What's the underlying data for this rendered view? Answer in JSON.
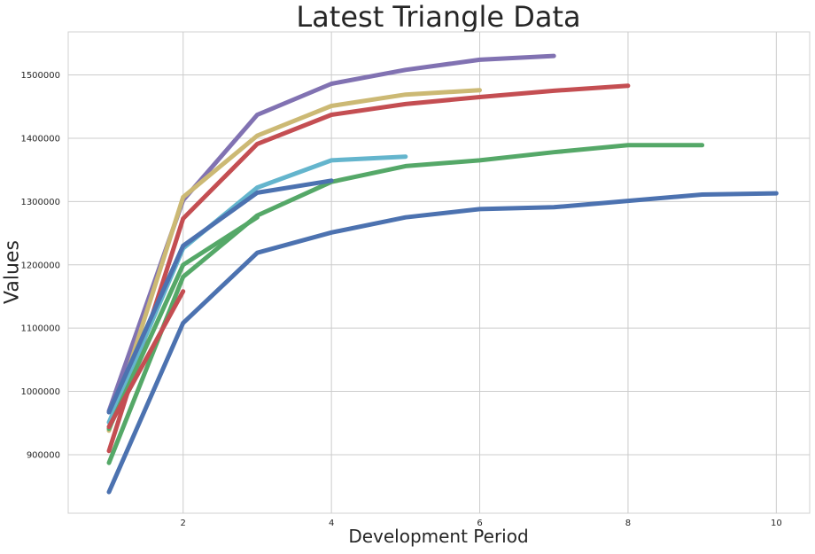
{
  "chart_data": {
    "type": "line",
    "title": "Latest Triangle Data",
    "xlabel": "Development Period",
    "ylabel": "Values",
    "xlim": [
      0.45,
      10.45
    ],
    "ylim": [
      807500,
      1568000
    ],
    "grid": true,
    "legend": "none",
    "xticks": [
      2,
      4,
      6,
      8,
      10
    ],
    "yticks": [
      900000,
      1000000,
      1100000,
      1200000,
      1300000,
      1400000,
      1500000
    ],
    "series": [
      {
        "color": "#4c72b0",
        "points": [
          [
            1,
            841000
          ],
          [
            2,
            1108000
          ],
          [
            3,
            1219000
          ],
          [
            4,
            1251000
          ],
          [
            5,
            1275000
          ],
          [
            6,
            1288000
          ],
          [
            7,
            1291000
          ],
          [
            8,
            1301000
          ],
          [
            9,
            1311000
          ],
          [
            10,
            1313000
          ]
        ]
      },
      {
        "color": "#55a868",
        "points": [
          [
            1,
            887000
          ],
          [
            2,
            1181000
          ],
          [
            3,
            1278000
          ],
          [
            4,
            1331000
          ],
          [
            5,
            1356000
          ],
          [
            6,
            1365000
          ],
          [
            7,
            1378000
          ],
          [
            8,
            1389000
          ],
          [
            9,
            1389000
          ]
        ]
      },
      {
        "color": "#c44e52",
        "points": [
          [
            1,
            906000
          ],
          [
            2,
            1273000
          ],
          [
            3,
            1391000
          ],
          [
            4,
            1437000
          ],
          [
            5,
            1454000
          ],
          [
            6,
            1465000
          ],
          [
            7,
            1475000
          ],
          [
            8,
            1483000
          ]
        ]
      },
      {
        "color": "#8172b2",
        "points": [
          [
            1,
            969000
          ],
          [
            2,
            1302000
          ],
          [
            3,
            1437000
          ],
          [
            4,
            1486000
          ],
          [
            5,
            1508000
          ],
          [
            6,
            1524000
          ],
          [
            7,
            1530000
          ]
        ]
      },
      {
        "color": "#ccb974",
        "points": [
          [
            1,
            938000
          ],
          [
            2,
            1307000
          ],
          [
            3,
            1404000
          ],
          [
            4,
            1451000
          ],
          [
            5,
            1469000
          ],
          [
            6,
            1476000
          ]
        ]
      },
      {
        "color": "#64b5cd",
        "points": [
          [
            1,
            951000
          ],
          [
            2,
            1226000
          ],
          [
            3,
            1322000
          ],
          [
            4,
            1365000
          ],
          [
            5,
            1371000
          ]
        ]
      },
      {
        "color": "#4c72b0",
        "points": [
          [
            1,
            967000
          ],
          [
            2,
            1230000
          ],
          [
            3,
            1314000
          ],
          [
            4,
            1333000
          ]
        ]
      },
      {
        "color": "#55a868",
        "points": [
          [
            1,
            941000
          ],
          [
            2,
            1200000
          ],
          [
            3,
            1275000
          ]
        ]
      },
      {
        "color": "#c44e52",
        "points": [
          [
            1,
            944000
          ],
          [
            2,
            1158000
          ]
        ]
      }
    ]
  }
}
